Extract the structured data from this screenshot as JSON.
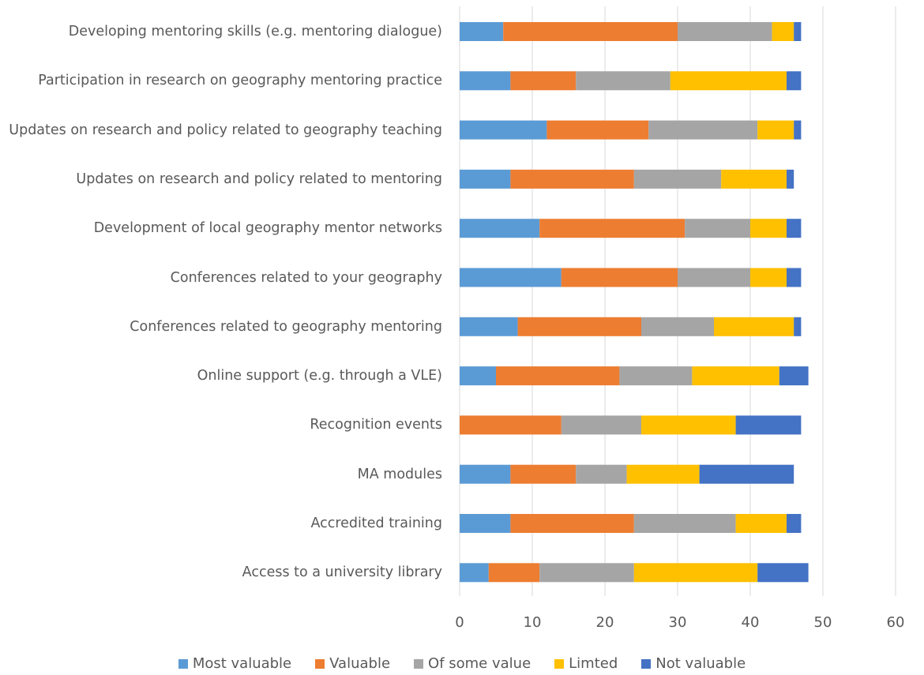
{
  "chart_data": {
    "type": "stacked_barh",
    "categories": [
      "Developing mentoring skills (e.g. mentoring dialogue)",
      "Participation in research on geography mentoring practice",
      "Updates on research and policy related to geography teaching",
      "Updates on research and policy related to mentoring",
      "Development of local geography mentor networks",
      "Conferences related to your geography",
      "Conferences related to geography mentoring",
      "Online support (e.g. through a VLE)",
      "Recognition events",
      "MA modules",
      "Accredited training",
      "Access to a university library"
    ],
    "series": [
      {
        "name": "Most valuable",
        "color": "#5b9bd5",
        "values": [
          6,
          7,
          12,
          7,
          11,
          14,
          8,
          5,
          0,
          7,
          7,
          4
        ]
      },
      {
        "name": "Valuable",
        "color": "#ed7d31",
        "values": [
          24,
          9,
          14,
          17,
          20,
          16,
          17,
          17,
          14,
          9,
          17,
          7
        ]
      },
      {
        "name": "Of some value",
        "color": "#a5a5a5",
        "values": [
          13,
          13,
          15,
          12,
          9,
          10,
          10,
          10,
          11,
          7,
          14,
          13
        ]
      },
      {
        "name": "Limted",
        "color": "#ffc000",
        "values": [
          3,
          16,
          5,
          9,
          5,
          5,
          11,
          12,
          13,
          10,
          7,
          17
        ]
      },
      {
        "name": "Not valuable",
        "color": "#4472c4",
        "values": [
          1,
          2,
          1,
          1,
          2,
          2,
          1,
          4,
          9,
          13,
          2,
          7
        ]
      }
    ],
    "xlim": [
      0,
      60
    ],
    "xticks": [
      0,
      10,
      20,
      30,
      40,
      50,
      60
    ],
    "grid": true,
    "legend": "bottom"
  }
}
